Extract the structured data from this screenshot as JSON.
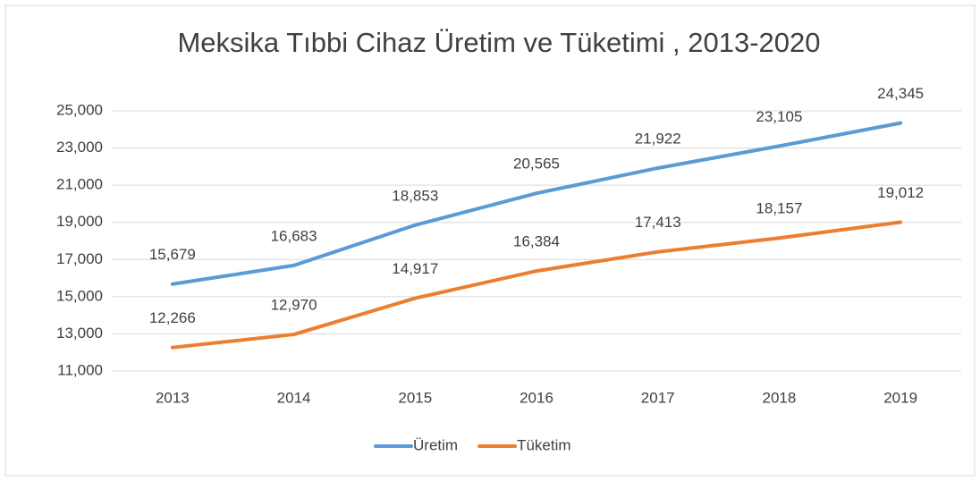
{
  "chart_data": {
    "type": "line",
    "title": "Meksika Tıbbi Cihaz Üretim ve Tüketimi , 2013-2020",
    "categories": [
      "2013",
      "2014",
      "2015",
      "2016",
      "2017",
      "2018",
      "2019"
    ],
    "series": [
      {
        "name": "Üretim",
        "color": "#5b9bd5",
        "values": [
          15679,
          16683,
          18853,
          20565,
          21922,
          23105,
          24345
        ],
        "value_labels": [
          "15,679",
          "16,683",
          "18,853",
          "20,565",
          "21,922",
          "23,105",
          "24,345"
        ]
      },
      {
        "name": "Tüketim",
        "color": "#ed7d31",
        "values": [
          12266,
          12970,
          14917,
          16384,
          17413,
          18157,
          19012
        ],
        "value_labels": [
          "12,266",
          "12,970",
          "14,917",
          "16,384",
          "17,413",
          "18,157",
          "19,012"
        ]
      }
    ],
    "ylim": [
      11000,
      25000
    ],
    "yticks": [
      {
        "value": 11000,
        "label": "11,000"
      },
      {
        "value": 13000,
        "label": "13,000"
      },
      {
        "value": 15000,
        "label": "15,000"
      },
      {
        "value": 17000,
        "label": "17,000"
      },
      {
        "value": 19000,
        "label": "19,000"
      },
      {
        "value": 21000,
        "label": "21,000"
      },
      {
        "value": 23000,
        "label": "23,000"
      },
      {
        "value": 25000,
        "label": "25,000"
      }
    ],
    "grid": true,
    "legend": "bottom"
  }
}
